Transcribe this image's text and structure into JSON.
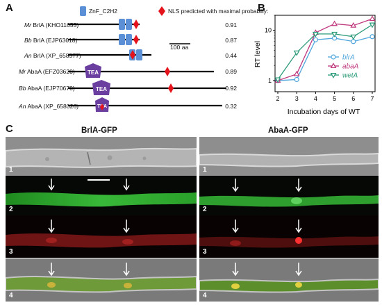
{
  "panel_a": {
    "letter": "A",
    "legend_znf": "ZnF_C2H2",
    "legend_nls": "NLS predicted with maximal probabiliy:",
    "scale_label": "100 aa",
    "domain_label": "TEA",
    "proteins": [
      {
        "species": "Mr",
        "name": "BrlA (KHO11655)",
        "probability": "0.91"
      },
      {
        "species": "Bb",
        "name": "BrlA (EJP63618)",
        "probability": "0.87"
      },
      {
        "species": "An",
        "name": "BrlA (XP_658577)",
        "probability": "0.44"
      },
      {
        "species": "Mr",
        "name": "AbaA (EFZ03620)",
        "probability": "0.89"
      },
      {
        "species": "Bb",
        "name": "AbaA (EJP70670)",
        "probability": "0.92"
      },
      {
        "species": "An",
        "name": "AbaA (XP_658026)",
        "probability": "0.32"
      }
    ],
    "colors": {
      "znf": "#5b8fd6",
      "nls": "#e5141c",
      "tea": "#6b3fa0",
      "line": "#000000"
    }
  },
  "panel_b": {
    "letter": "B"
  },
  "chart_data": {
    "type": "line",
    "xlabel": "Incubation days of WT",
    "ylabel": "RT level",
    "x": [
      2,
      3,
      4,
      5,
      6,
      7
    ],
    "xlim": [
      2,
      7
    ],
    "ylim": [
      0.6,
      20
    ],
    "yscale": "log",
    "yticks": [
      1,
      10
    ],
    "legend_position": "right",
    "series": [
      {
        "name": "blrA",
        "marker": "circle",
        "color": "#4ea6dc",
        "values": [
          1.0,
          1.05,
          6.5,
          7.0,
          6.0,
          7.5
        ]
      },
      {
        "name": "abaA",
        "marker": "triangle-up",
        "color": "#c0397e",
        "values": [
          1.0,
          1.35,
          9.0,
          13.5,
          12.5,
          17.0
        ]
      },
      {
        "name": "wetA",
        "marker": "triangle-down",
        "color": "#2a9a78",
        "values": [
          1.05,
          3.6,
          8.5,
          8.5,
          7.5,
          13.0
        ]
      }
    ]
  },
  "panel_c": {
    "letter": "C",
    "left_title": "BrlA-GFP",
    "right_title": "AbaA-GFP",
    "row_numbers": [
      "1",
      "2",
      "3",
      "4"
    ]
  }
}
